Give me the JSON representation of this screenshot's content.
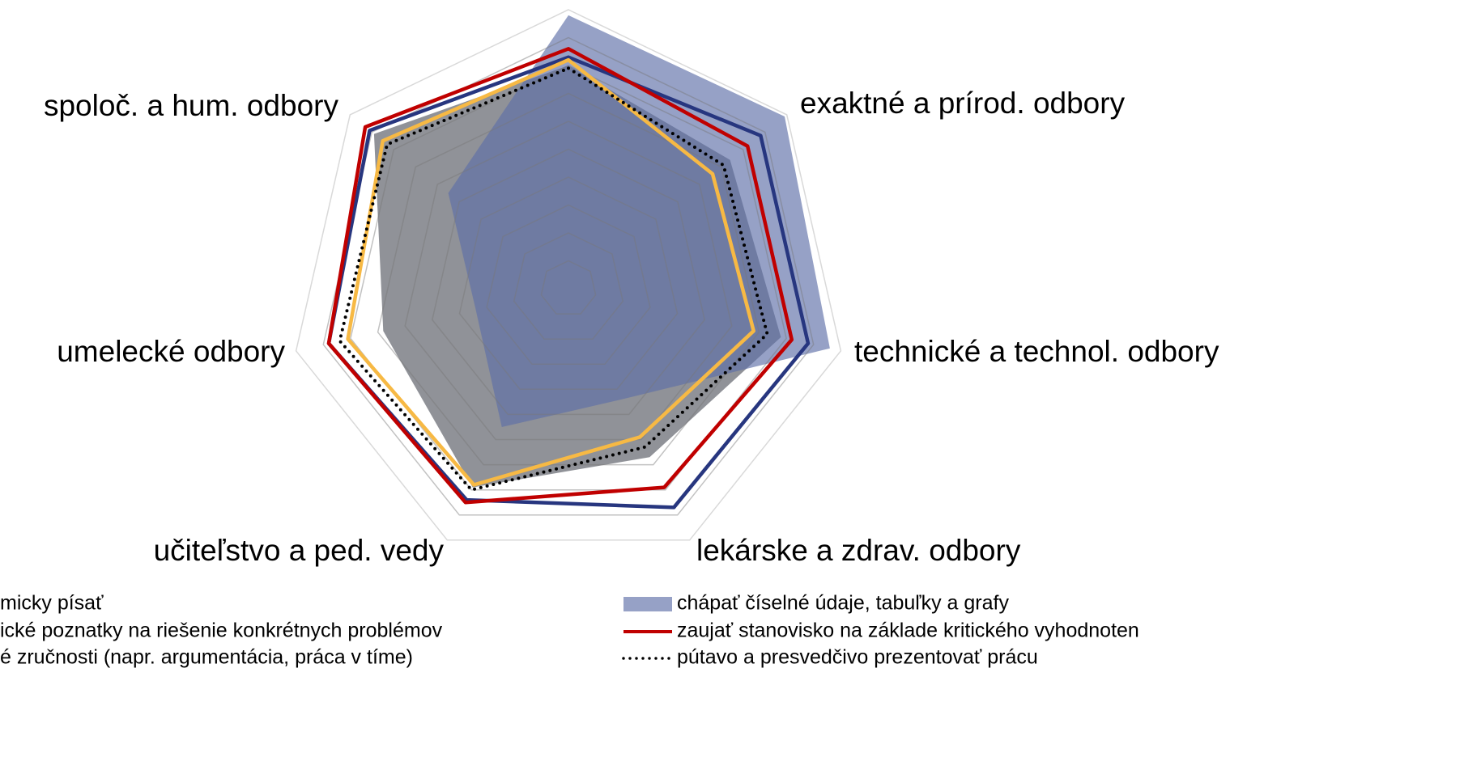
{
  "chart_data": {
    "type": "radar",
    "categories": [
      null,
      "exaktné a prírod. odbory",
      "technické a technol. odbory",
      "lekárske a zdrav. odbory",
      "učiteľstvo a ped. vedy",
      "umelecké odbory",
      "spoloč. a hum. odbory"
    ],
    "ylim": [
      0,
      100
    ],
    "yticks": [
      10,
      20,
      30,
      40,
      50,
      60,
      70,
      80,
      90,
      100
    ],
    "grid": true,
    "series": [
      {
        "name": "micky písať",
        "color": "#7d7f86",
        "style": "area",
        "values": [
          80,
          74,
          78,
          67,
          79,
          68,
          89
        ]
      },
      {
        "name": "ické poznatky na riešenie konkrétnych problémov",
        "color": "#27367f",
        "style": "line",
        "values": [
          83,
          88,
          88,
          87,
          84,
          88,
          91
        ]
      },
      {
        "name": "é zručnosti (napr. argumentácia, práca v tíme)",
        "color": "#f7b944",
        "style": "line",
        "values": [
          82,
          66,
          68,
          59,
          78,
          81,
          85
        ]
      },
      {
        "name": "chápať číselné údaje, tabuľky a grafy",
        "color": "#5e6ea8",
        "style": "area",
        "values": [
          98,
          99,
          96,
          44,
          55,
          34,
          55
        ]
      },
      {
        "name": "zaujať stanovisko na základe kritického vyhodnoten",
        "color": "#c00000",
        "style": "line",
        "values": [
          86,
          82,
          82,
          79,
          85,
          88,
          93
        ]
      },
      {
        "name": "pútavo a presvedčivo prezentovať prácu",
        "color": "#000000",
        "style": "dotted",
        "values": [
          79,
          71,
          73,
          63,
          80,
          84,
          83
        ]
      }
    ]
  }
}
